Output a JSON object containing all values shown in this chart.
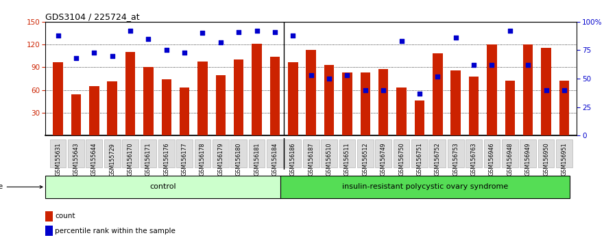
{
  "title": "GDS3104 / 225724_at",
  "samples": [
    "GSM155631",
    "GSM155643",
    "GSM155644",
    "GSM155729",
    "GSM156170",
    "GSM156171",
    "GSM156176",
    "GSM156177",
    "GSM156178",
    "GSM156179",
    "GSM156180",
    "GSM156181",
    "GSM156184",
    "GSM156186",
    "GSM156187",
    "GSM156510",
    "GSM156511",
    "GSM156512",
    "GSM156749",
    "GSM156750",
    "GSM156751",
    "GSM156752",
    "GSM156753",
    "GSM156763",
    "GSM156946",
    "GSM156948",
    "GSM156949",
    "GSM156950",
    "GSM156951"
  ],
  "counts": [
    97,
    54,
    65,
    71,
    110,
    90,
    74,
    63,
    98,
    80,
    100,
    121,
    104,
    97,
    113,
    93,
    83,
    83,
    88,
    63,
    46,
    108,
    86,
    78,
    120,
    72,
    120,
    116,
    72
  ],
  "percentile_ranks_raw": [
    88,
    68,
    73,
    70,
    92,
    85,
    75,
    73,
    90,
    82,
    91,
    92,
    91,
    88,
    53,
    50,
    53,
    40,
    40,
    83,
    37,
    52,
    86,
    62,
    62,
    92,
    62,
    40,
    40
  ],
  "control_count": 13,
  "disease_count": 16,
  "group_labels": [
    "control",
    "insulin-resistant polycystic ovary syndrome"
  ],
  "bar_color": "#cc2200",
  "dot_color": "#0000cc",
  "y_left_ticks": [
    30,
    60,
    90,
    120,
    150
  ],
  "y_right_ticks": [
    0,
    25,
    50,
    75,
    100
  ],
  "ylim_left": [
    0,
    150
  ],
  "control_bg": "#ccffcc",
  "disease_bg": "#55dd55",
  "ticklabel_bg": "#dddddd",
  "ticklabel_border": "#aaaaaa"
}
